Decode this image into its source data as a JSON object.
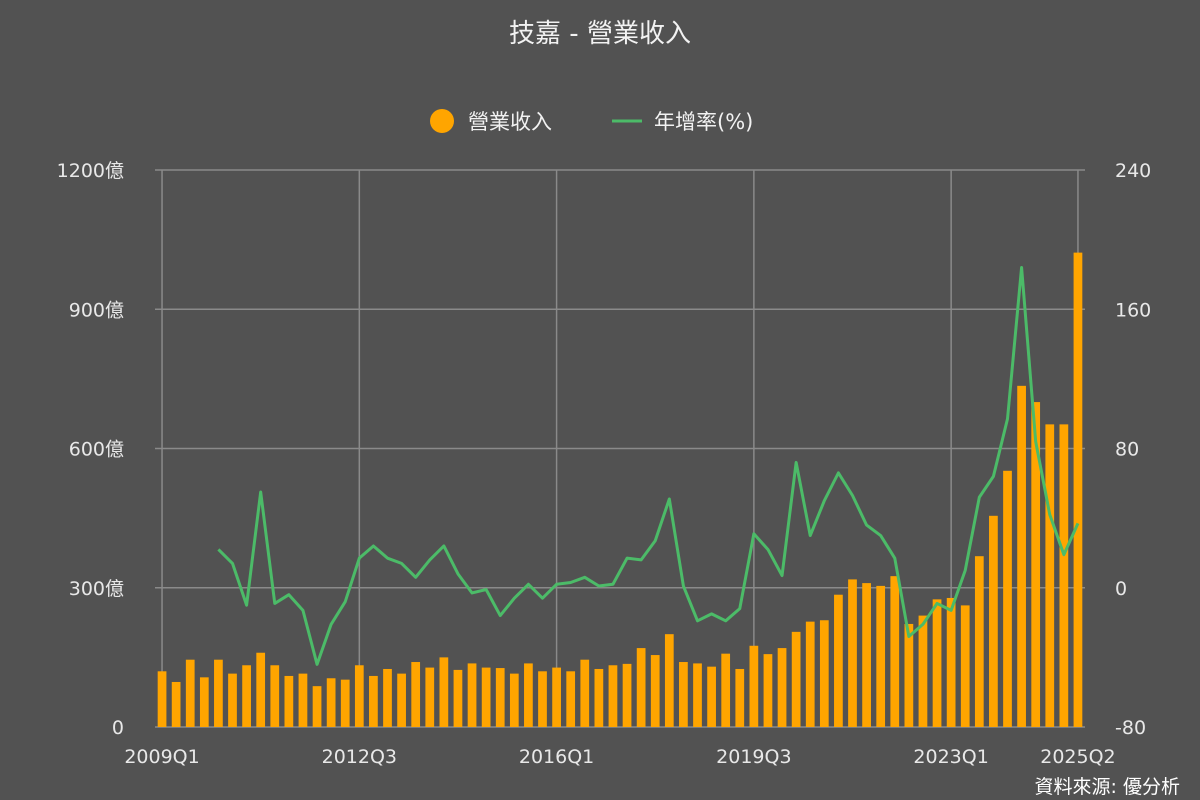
{
  "colors": {
    "background": "#525252",
    "grid": "#8a8a8a",
    "bar": "#ffa500",
    "line": "#4cbb68",
    "text": "#f2f2f2"
  },
  "source": "資料來源: 優分析",
  "chart_data": {
    "type": "bar",
    "title": "技嘉 - 營業收入",
    "legend_position": "top-center",
    "grid": true,
    "x_tick_labels": [
      "2009Q1",
      "2012Q3",
      "2016Q1",
      "2019Q3",
      "2023Q1",
      "2025Q2"
    ],
    "y_left": {
      "ylim": [
        0,
        1200
      ],
      "ticks": [
        0,
        300,
        600,
        900,
        1200
      ],
      "tick_labels": [
        "0",
        "300億",
        "600億",
        "900億",
        "1200億"
      ]
    },
    "y_right": {
      "ylim": [
        -80,
        240
      ],
      "ticks": [
        -80,
        0,
        80,
        160,
        240
      ],
      "tick_labels": [
        "-80",
        "0",
        "80",
        "160",
        "240"
      ]
    },
    "categories": [
      "2009Q1",
      "2009Q2",
      "2009Q3",
      "2009Q4",
      "2010Q1",
      "2010Q2",
      "2010Q3",
      "2010Q4",
      "2011Q1",
      "2011Q2",
      "2011Q3",
      "2011Q4",
      "2012Q1",
      "2012Q2",
      "2012Q3",
      "2012Q4",
      "2013Q1",
      "2013Q2",
      "2013Q3",
      "2013Q4",
      "2014Q1",
      "2014Q2",
      "2014Q3",
      "2014Q4",
      "2015Q1",
      "2015Q2",
      "2015Q3",
      "2015Q4",
      "2016Q1",
      "2016Q2",
      "2016Q3",
      "2016Q4",
      "2017Q1",
      "2017Q2",
      "2017Q3",
      "2017Q4",
      "2018Q1",
      "2018Q2",
      "2018Q3",
      "2018Q4",
      "2019Q1",
      "2019Q2",
      "2019Q3",
      "2019Q4",
      "2020Q1",
      "2020Q2",
      "2020Q3",
      "2020Q4",
      "2021Q1",
      "2021Q2",
      "2021Q3",
      "2021Q4",
      "2022Q1",
      "2022Q2",
      "2022Q3",
      "2022Q4",
      "2023Q1",
      "2023Q2",
      "2023Q3",
      "2023Q4",
      "2024Q1",
      "2024Q2",
      "2024Q3",
      "2024Q4",
      "2025Q1",
      "2025Q2"
    ],
    "series": [
      {
        "name": "營業收入",
        "type": "bar",
        "axis": "left",
        "values": [
          120,
          97,
          145,
          107,
          145,
          115,
          133,
          160,
          133,
          110,
          115,
          88,
          105,
          102,
          133,
          110,
          125,
          115,
          140,
          128,
          150,
          123,
          137,
          128,
          127,
          115,
          137,
          120,
          128,
          120,
          145,
          125,
          133,
          136,
          170,
          155,
          200,
          140,
          137,
          130,
          158,
          125,
          175,
          157,
          170,
          205,
          227,
          230,
          285,
          318,
          310,
          304,
          325,
          222,
          240,
          275,
          278,
          262,
          368,
          455,
          552,
          735,
          700,
          652,
          652,
          1022
        ]
      },
      {
        "name": "年增率(%)",
        "type": "line",
        "axis": "right",
        "values": [
          null,
          null,
          null,
          null,
          22,
          14,
          -10,
          55,
          -9,
          -4,
          -13,
          -44,
          -21,
          -8,
          17,
          24,
          17,
          14,
          6,
          16,
          24,
          8,
          -3,
          -1,
          -16,
          -6,
          2,
          -6,
          2,
          3,
          6,
          1,
          2,
          17,
          16,
          27,
          51,
          1,
          -19,
          -15,
          -19,
          -12,
          31,
          22,
          7,
          72,
          30,
          50,
          66,
          53,
          36,
          30,
          17,
          -28,
          -21,
          -9,
          -13,
          10,
          52,
          64,
          97,
          184,
          84,
          42,
          19,
          37
        ]
      }
    ]
  }
}
